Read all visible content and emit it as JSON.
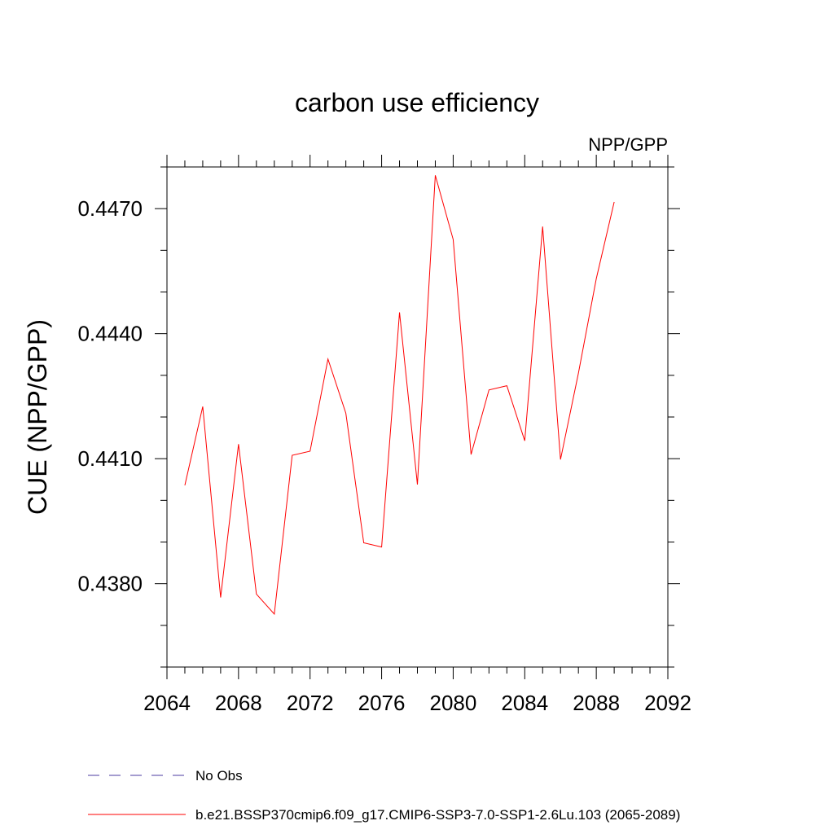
{
  "chart_data": {
    "type": "line",
    "title": "carbon use efficiency",
    "subtitle": "NPP/GPP",
    "xlabel": "",
    "ylabel": "CUE  (NPP/GPP)",
    "xlim": [
      2064,
      2092
    ],
    "ylim": [
      0.436,
      0.448
    ],
    "xticks": [
      2064,
      2068,
      2072,
      2076,
      2080,
      2084,
      2088,
      2092
    ],
    "xtick_labels": [
      "2064",
      "2068",
      "2072",
      "2076",
      "2080",
      "2084",
      "2088",
      "2092"
    ],
    "xminor_step": 1,
    "yticks": [
      0.438,
      0.441,
      0.444,
      0.447
    ],
    "ytick_labels": [
      "0.4380",
      "0.4410",
      "0.4440",
      "0.4470"
    ],
    "yminor_step": 0.001,
    "grid": false,
    "series": [
      {
        "name": "No Obs",
        "color": "#4b3ba0",
        "dash": "dashed",
        "x": [],
        "values": []
      },
      {
        "name": "b.e21.BSSP370cmip6.f09_g17.CMIP6-SSP3-7.0-SSP1-2.6Lu.103 (2065-2089)",
        "color": "#ff0000",
        "dash": "solid",
        "x": [
          2065,
          2066,
          2067,
          2068,
          2069,
          2070,
          2071,
          2072,
          2073,
          2074,
          2075,
          2076,
          2077,
          2078,
          2079,
          2080,
          2081,
          2082,
          2083,
          2084,
          2085,
          2086,
          2087,
          2088,
          2089
        ],
        "values": [
          0.44036,
          0.44225,
          0.43767,
          0.44135,
          0.43775,
          0.43727,
          0.44108,
          0.44118,
          0.44339,
          0.44209,
          0.43898,
          0.43888,
          0.44451,
          0.44038,
          0.4478,
          0.44626,
          0.4411,
          0.44265,
          0.44275,
          0.44143,
          0.44657,
          0.44098,
          0.44305,
          0.44532,
          0.44716
        ]
      }
    ],
    "legend": "bottom"
  }
}
